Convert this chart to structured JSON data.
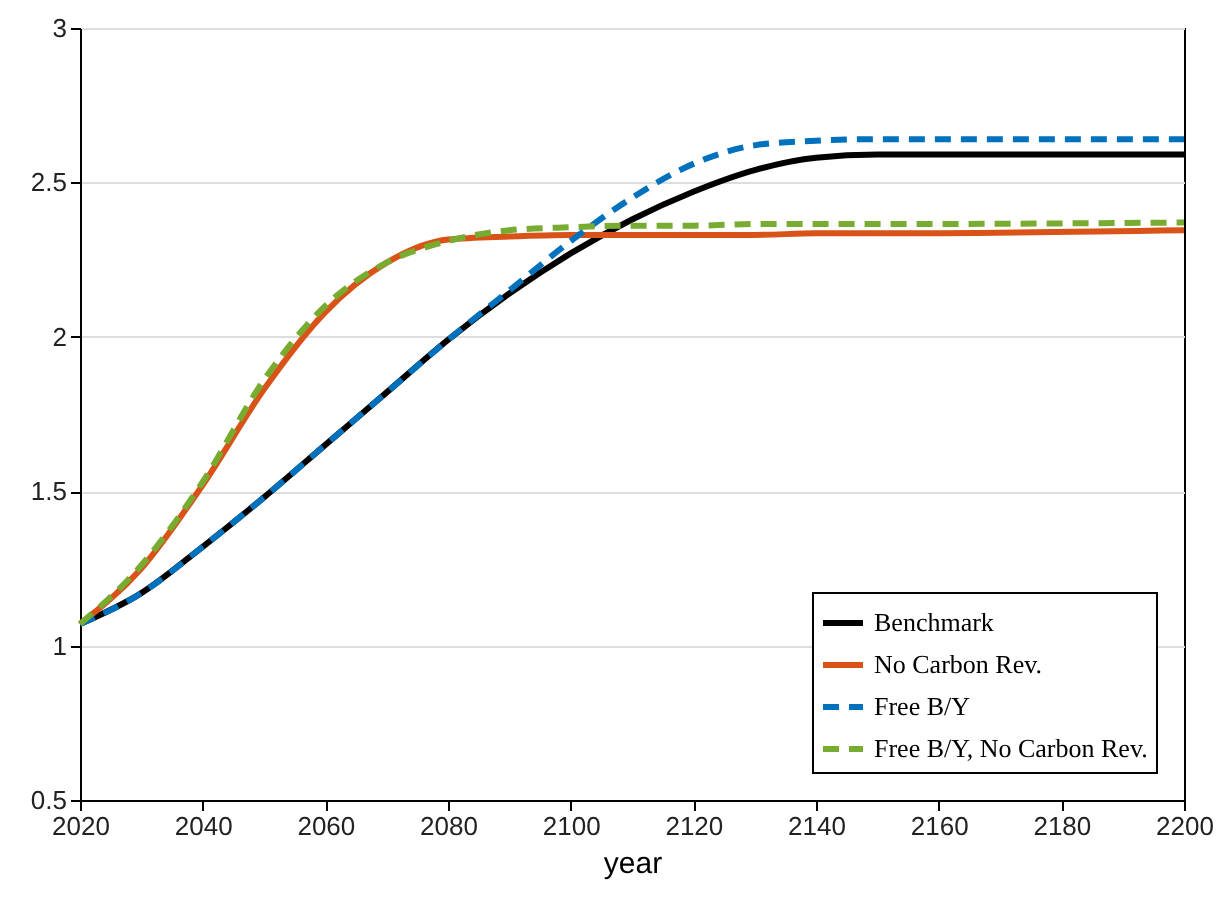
{
  "chart_data": {
    "type": "line",
    "xlabel": "year",
    "x": [
      2020,
      2030,
      2040,
      2050,
      2060,
      2070,
      2080,
      2090,
      2100,
      2110,
      2120,
      2130,
      2140,
      2150,
      2200
    ],
    "series": [
      {
        "name": "Benchmark",
        "color": "#000000",
        "line_style": "solid",
        "values": [
          1.07,
          1.17,
          1.32,
          1.48,
          1.65,
          1.82,
          1.99,
          2.14,
          2.27,
          2.38,
          2.47,
          2.54,
          2.58,
          2.59,
          2.59
        ]
      },
      {
        "name": "No Carbon Rev.",
        "color": "#d95319",
        "line_style": "solid",
        "values": [
          1.07,
          1.25,
          1.52,
          1.83,
          2.08,
          2.24,
          2.315,
          2.325,
          2.33,
          2.33,
          2.33,
          2.33,
          2.335,
          2.335,
          2.345
        ]
      },
      {
        "name": "Free B/Y",
        "color": "#0072bd",
        "line_style": "dashed",
        "values": [
          1.07,
          1.17,
          1.32,
          1.48,
          1.65,
          1.82,
          1.99,
          2.15,
          2.31,
          2.45,
          2.56,
          2.62,
          2.635,
          2.64,
          2.64
        ]
      },
      {
        "name": "Free B/Y, No Carbon Rev.",
        "color": "#77ac30",
        "line_style": "dashed",
        "values": [
          1.07,
          1.26,
          1.53,
          1.86,
          2.1,
          2.24,
          2.31,
          2.345,
          2.355,
          2.36,
          2.36,
          2.365,
          2.365,
          2.365,
          2.37
        ]
      }
    ],
    "xlim": [
      2020,
      2200
    ],
    "xticks": [
      2020,
      2040,
      2060,
      2080,
      2100,
      2120,
      2140,
      2160,
      2180,
      2200
    ],
    "ylim": [
      0.5,
      3
    ],
    "yticks": [
      0.5,
      1,
      1.5,
      2,
      2.5,
      3
    ],
    "grid": "y",
    "legend": "bottom right"
  }
}
